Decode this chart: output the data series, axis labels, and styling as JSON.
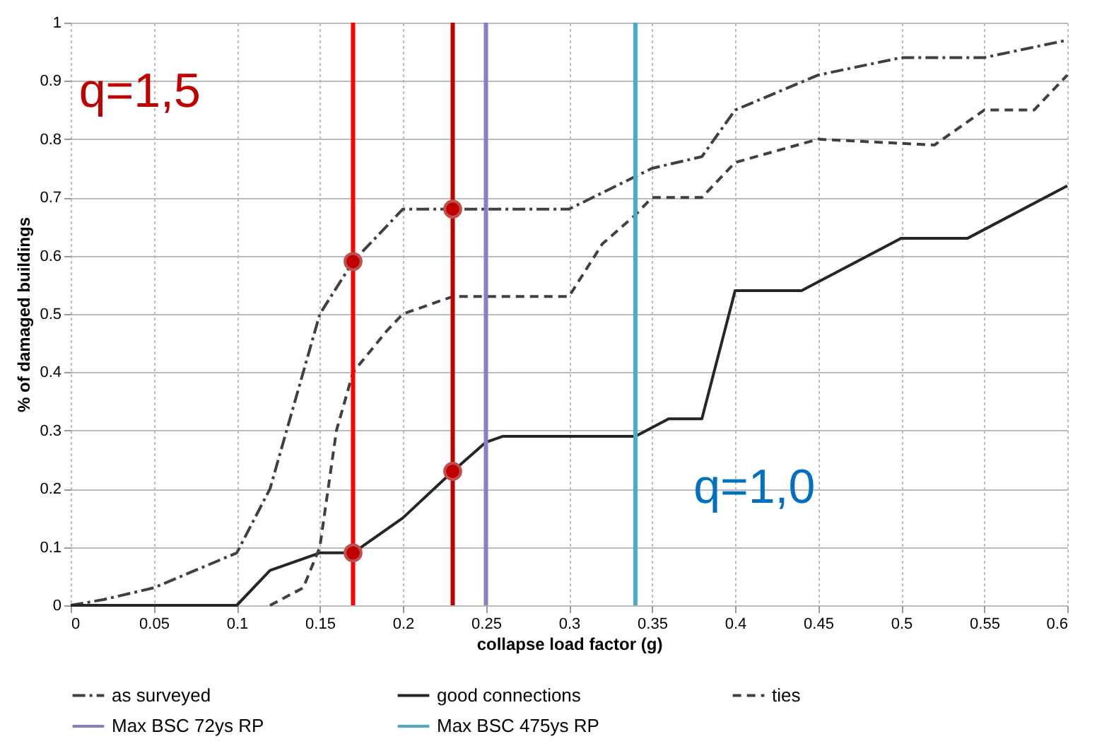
{
  "chart_data": {
    "type": "line",
    "xlabel": "collapse load factor (g)",
    "ylabel": "% of damaged buildings",
    "xlim": [
      0,
      0.6
    ],
    "xticks": [
      0,
      0.05,
      0.1,
      0.15,
      0.2,
      0.25,
      0.3,
      0.35,
      0.4,
      0.45,
      0.5,
      0.55,
      0.6
    ],
    "ylim": [
      0,
      1
    ],
    "yticks": [
      0,
      0.1,
      0.2,
      0.3,
      0.4,
      0.5,
      0.6,
      0.7,
      0.8,
      0.9,
      1
    ],
    "grid": true,
    "legend": "bottom",
    "series": [
      {
        "name": "as surveyed",
        "color": "#404040",
        "line_style": "dashdot",
        "x": [
          0,
          0.02,
          0.05,
          0.1,
          0.12,
          0.15,
          0.17,
          0.2,
          0.25,
          0.3,
          0.35,
          0.38,
          0.4,
          0.45,
          0.5,
          0.55,
          0.6
        ],
        "values": [
          0,
          0.01,
          0.03,
          0.09,
          0.2,
          0.5,
          0.59,
          0.68,
          0.68,
          0.68,
          0.75,
          0.77,
          0.85,
          0.91,
          0.94,
          0.94,
          0.97
        ]
      },
      {
        "name": "good connections",
        "color": "#262626",
        "line_style": "solid",
        "x": [
          0,
          0.1,
          0.12,
          0.15,
          0.17,
          0.2,
          0.23,
          0.25,
          0.26,
          0.34,
          0.36,
          0.38,
          0.4,
          0.44,
          0.5,
          0.54,
          0.6
        ],
        "values": [
          0,
          0,
          0.06,
          0.09,
          0.09,
          0.15,
          0.23,
          0.28,
          0.29,
          0.29,
          0.32,
          0.32,
          0.54,
          0.54,
          0.63,
          0.63,
          0.72
        ]
      },
      {
        "name": "ties",
        "color": "#404040",
        "line_style": "dashed",
        "x": [
          0.12,
          0.14,
          0.15,
          0.16,
          0.17,
          0.19,
          0.2,
          0.23,
          0.3,
          0.32,
          0.34,
          0.35,
          0.38,
          0.4,
          0.45,
          0.52,
          0.55,
          0.58,
          0.6
        ],
        "values": [
          0,
          0.03,
          0.1,
          0.3,
          0.4,
          0.47,
          0.5,
          0.53,
          0.53,
          0.62,
          0.67,
          0.7,
          0.7,
          0.76,
          0.8,
          0.79,
          0.85,
          0.85,
          0.91
        ]
      },
      {
        "type": "scatter",
        "color": "#c00000",
        "marker": "circle",
        "x": [
          0.17,
          0.17,
          0.23,
          0.23
        ],
        "values": [
          0.59,
          0.09,
          0.68,
          0.23
        ]
      }
    ],
    "ref_lines": [
      {
        "axis": "x",
        "value": 0.17,
        "color": "#ff0000"
      },
      {
        "axis": "x",
        "value": 0.23,
        "color": "#c00000"
      },
      {
        "axis": "x",
        "value": 0.25,
        "label": "Max BSC 72ys RP",
        "color": "#8e7cc3"
      },
      {
        "axis": "x",
        "value": 0.34,
        "label": "Max BSC 475ys RP",
        "color": "#4bacc6"
      }
    ],
    "annotations": [
      "q=1,5",
      "q=1,0"
    ]
  }
}
